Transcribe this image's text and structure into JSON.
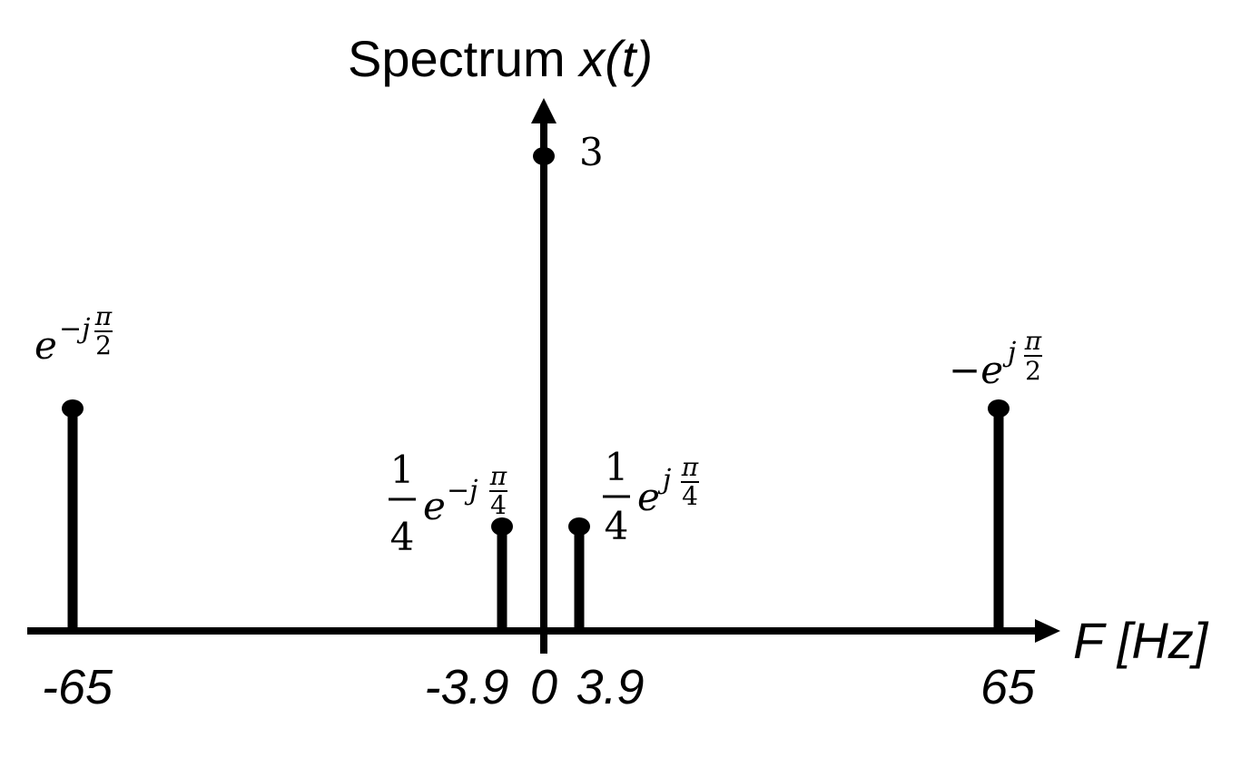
{
  "chart_data": {
    "type": "stem",
    "title": "Spectrum ",
    "title_math": "x(t)",
    "xlabel": "F [Hz]",
    "ylabel": "",
    "xlim": [
      -68,
      68
    ],
    "ylim": [
      0,
      3.3
    ],
    "x_ticks": [
      {
        "value": -65,
        "label": "-65"
      },
      {
        "value": -3.9,
        "label": "-3.9"
      },
      {
        "value": 0,
        "label": "0"
      },
      {
        "value": 3.9,
        "label": "3.9"
      },
      {
        "value": 65,
        "label": "65"
      }
    ],
    "stems": [
      {
        "x": -65,
        "magnitude": 1,
        "annotation": {
          "coef": "",
          "sign": "",
          "exp_sign": "−",
          "exp_num": "π",
          "exp_den": "2"
        }
      },
      {
        "x": -3.9,
        "magnitude": 0.25,
        "annotation": {
          "coef_num": "1",
          "coef_den": "4",
          "sign": "",
          "exp_sign": "−",
          "exp_num": "π",
          "exp_den": "4"
        }
      },
      {
        "x": 0,
        "magnitude": 3,
        "annotation": {
          "value": "3"
        }
      },
      {
        "x": 3.9,
        "magnitude": 0.25,
        "annotation": {
          "coef_num": "1",
          "coef_den": "4",
          "sign": "",
          "exp_sign": "",
          "exp_num": "π",
          "exp_den": "4"
        }
      },
      {
        "x": 65,
        "magnitude": 1,
        "annotation": {
          "coef": "",
          "sign": "−",
          "exp_sign": "",
          "exp_num": "π",
          "exp_den": "2"
        }
      }
    ],
    "grid": false,
    "colors": {
      "stem": "#000000",
      "axis": "#000000",
      "text": "#000000"
    }
  }
}
